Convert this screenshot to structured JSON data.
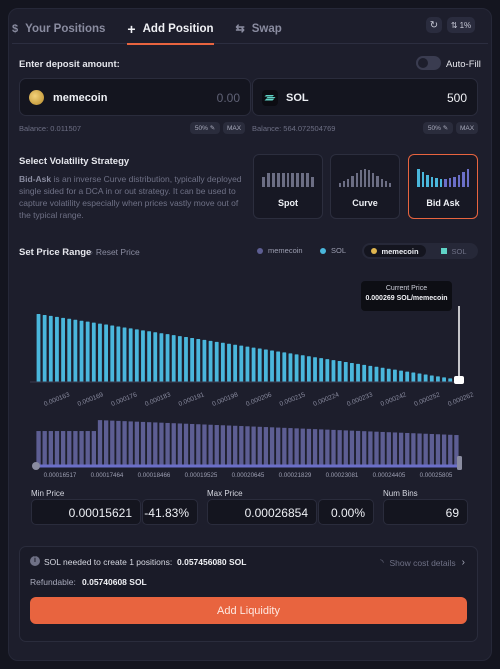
{
  "tabs": [
    {
      "label": "Your Positions",
      "icon": "dollar-circle-icon"
    },
    {
      "label": "Add Position",
      "icon": "plus-icon"
    },
    {
      "label": "Swap",
      "icon": "swap-arrows-icon"
    }
  ],
  "header": {
    "refresh_icon": "refresh-icon",
    "slippage": "1%"
  },
  "deposit": {
    "title": "Enter deposit amount:",
    "autofill_label": "Auto-Fill",
    "autofill_on": false,
    "token_a": {
      "name": "memecoin",
      "value": "0.00",
      "balance": "Balance: 0.011507",
      "pct": "50%",
      "max": "MAX"
    },
    "token_b": {
      "name": "SOL",
      "value": "500",
      "balance": "Balance: 564.072504769",
      "pct": "50%",
      "max": "MAX"
    }
  },
  "strategy": {
    "title": "Select Volatility Strategy",
    "desc_bold": "Bid-Ask",
    "desc_rest": " is an inverse Curve distribution, typically deployed single sided for a DCA in or out strategy. It can be used to capture volatility especially when prices vastly move out of the typical range.",
    "options": [
      "Spot",
      "Curve",
      "Bid Ask"
    ],
    "selected": "Bid Ask"
  },
  "range": {
    "title": "Set Price Range",
    "reset_label": "Reset Price",
    "legend": [
      "memecoin",
      "SOL"
    ],
    "toggle_a": "memecoin",
    "toggle_b": "SOL",
    "current_price_title": "Current Price",
    "current_price": "0.000269 SOL/memecoin",
    "x_ticks": [
      "0.000163",
      "0.000169",
      "0.000176",
      "0.000183",
      "0.000191",
      "0.000198",
      "0.000206",
      "0.000215",
      "0.000224",
      "0.000233",
      "0.000242",
      "0.000252",
      "0.000262"
    ],
    "slider_ticks": [
      "0.00016517",
      "0.00017464",
      "0.00018466",
      "0.00019525",
      "0.00020645",
      "0.00021829",
      "0.00023081",
      "0.00024405",
      "0.00025805"
    ]
  },
  "chart_data": {
    "type": "bar",
    "description_series": "SOL liquidity per bin (Bid-Ask distribution), relative height",
    "bins": 69,
    "start": 1.0,
    "end": 0.04,
    "colors": {
      "sol": "#4ab7dc",
      "memecoin": "#5d5e93",
      "current": "#ffffff"
    }
  },
  "inputs": {
    "min_price_label": "Min Price",
    "min_price": "0.00015621",
    "min_pct": "-41.83%",
    "max_price_label": "Max Price",
    "max_price": "0.00026854",
    "max_pct": "0.00%",
    "num_bins_label": "Num Bins",
    "num_bins": "69"
  },
  "cost": {
    "needed_label": "SOL needed to create 1 positions:",
    "needed_value": "0.057456080 SOL",
    "show_details": "Show cost details",
    "refundable_label": "Refundable:",
    "refundable_value": "0.05740608 SOL",
    "button": "Add Liquidity"
  }
}
